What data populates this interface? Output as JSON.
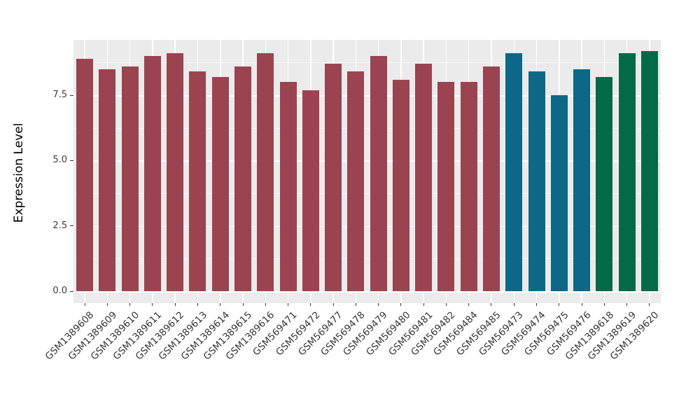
{
  "chart_data": {
    "type": "bar",
    "title": "",
    "xlabel": "",
    "ylabel": "Expression Level",
    "ylim": [
      0,
      9.6
    ],
    "grid": true,
    "legend_position": "none",
    "panel_background": "#EBEBEB",
    "gridline_color": "#FFFFFF",
    "ytick_labels": [
      "0.0",
      "2.5",
      "5.0",
      "7.5"
    ],
    "ytick_values": [
      0,
      2.5,
      5.0,
      7.5
    ],
    "yminor_values": [
      1.25,
      3.75,
      6.25,
      8.75
    ],
    "categories": [
      "GSM1389608",
      "GSM1389609",
      "GSM1389610",
      "GSM1389611",
      "GSM1389612",
      "GSM1389613",
      "GSM1389614",
      "GSM1389615",
      "GSM1389616",
      "GSM569471",
      "GSM569472",
      "GSM569477",
      "GSM569478",
      "GSM569479",
      "GSM569480",
      "GSM569481",
      "GSM569482",
      "GSM569484",
      "GSM569485",
      "GSM569473",
      "GSM569474",
      "GSM569475",
      "GSM569476",
      "GSM1389618",
      "GSM1389619",
      "GSM1389620"
    ],
    "values": [
      8.9,
      8.5,
      8.6,
      9.0,
      9.1,
      8.4,
      8.2,
      8.6,
      9.1,
      8.0,
      7.7,
      8.7,
      8.4,
      9.0,
      8.1,
      8.7,
      8.0,
      8.0,
      8.6,
      9.1,
      8.4,
      7.5,
      8.5,
      8.2,
      9.1,
      9.2
    ],
    "group_colors": {
      "red": "#9B4350",
      "blue": "#0D6887",
      "green": "#036A48"
    },
    "bar_groups": [
      "red",
      "red",
      "red",
      "red",
      "red",
      "red",
      "red",
      "red",
      "red",
      "red",
      "red",
      "red",
      "red",
      "red",
      "red",
      "red",
      "red",
      "red",
      "red",
      "blue",
      "blue",
      "blue",
      "blue",
      "green",
      "green",
      "green"
    ]
  }
}
